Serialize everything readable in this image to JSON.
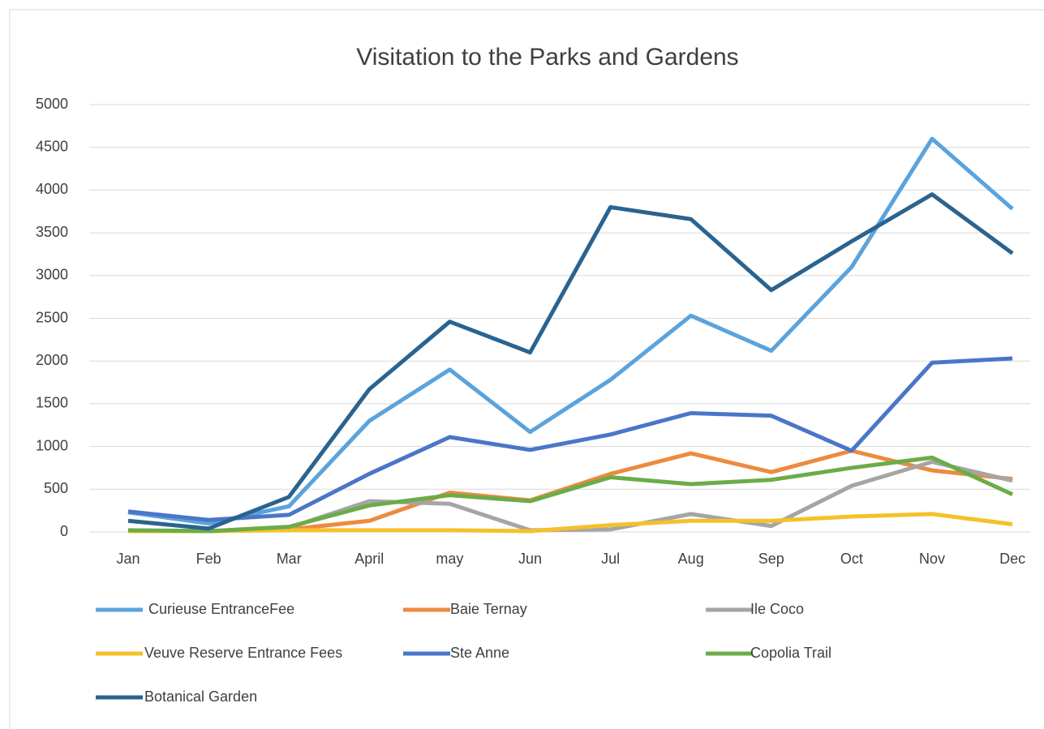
{
  "chart_data": {
    "type": "line",
    "title": "Visitation to the Parks and Gardens",
    "categories": [
      "Jan",
      "Feb",
      "Mar",
      "April",
      "may",
      "Jun",
      "Jul",
      "Aug",
      "Sep",
      "Oct",
      "Nov",
      "Dec"
    ],
    "series": [
      {
        "name": "Curieuse EntranceFee",
        "color": "#5ba3dc",
        "values": [
          230,
          100,
          300,
          1300,
          1900,
          1170,
          1780,
          2530,
          2120,
          3100,
          4600,
          3780
        ]
      },
      {
        "name": "Baie Ternay",
        "color": "#ed8a3f",
        "values": [
          10,
          10,
          30,
          130,
          460,
          370,
          680,
          920,
          700,
          950,
          720,
          620
        ]
      },
      {
        "name": "Ile Coco",
        "color": "#a5a5a5",
        "values": [
          10,
          10,
          50,
          360,
          330,
          20,
          30,
          210,
          70,
          540,
          820,
          600
        ]
      },
      {
        "name": "Veuve Reserve Entrance Fees",
        "color": "#f5c02a",
        "values": [
          10,
          10,
          20,
          20,
          20,
          10,
          80,
          130,
          130,
          180,
          210,
          90
        ]
      },
      {
        "name": "Ste Anne",
        "color": "#4a76c8",
        "values": [
          240,
          140,
          200,
          680,
          1110,
          960,
          1140,
          1390,
          1360,
          950,
          1980,
          2030
        ]
      },
      {
        "name": "Copolia Trail",
        "color": "#6cac48",
        "values": [
          20,
          10,
          60,
          310,
          430,
          360,
          640,
          560,
          610,
          750,
          870,
          440
        ]
      },
      {
        "name": "Botanical Garden",
        "color": "#2a638f",
        "values": [
          130,
          40,
          410,
          1670,
          2460,
          2100,
          3800,
          3660,
          2830,
          3400,
          3950,
          3260
        ]
      }
    ],
    "ylim": [
      0,
      5000
    ],
    "yticks": [
      0,
      500,
      1000,
      1500,
      2000,
      2500,
      3000,
      3500,
      4000,
      4500,
      5000
    ],
    "grid": true
  }
}
